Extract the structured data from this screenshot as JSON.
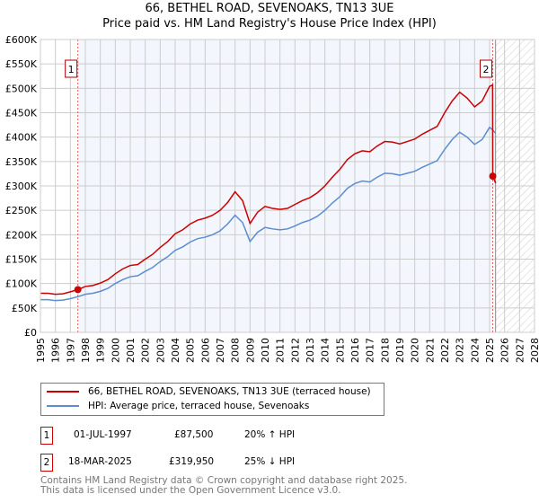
{
  "title": "66, BETHEL ROAD, SEVENOAKS, TN13 3UE",
  "subtitle": "Price paid vs. HM Land Registry's House Price Index (HPI)",
  "chart_data": {
    "type": "line",
    "xlim": [
      1995,
      2028
    ],
    "ylim": [
      0,
      600
    ],
    "x_ticks": [
      "1995",
      "1996",
      "1997",
      "1998",
      "1999",
      "2000",
      "2001",
      "2002",
      "2003",
      "2004",
      "2005",
      "2006",
      "2007",
      "2008",
      "2009",
      "2010",
      "2011",
      "2012",
      "2013",
      "2014",
      "2015",
      "2016",
      "2017",
      "2018",
      "2019",
      "2020",
      "2021",
      "2022",
      "2023",
      "2024",
      "2025",
      "2026",
      "2027",
      "2028"
    ],
    "y_ticks": [
      "£0",
      "£50K",
      "£100K",
      "£150K",
      "£200K",
      "£250K",
      "£300K",
      "£350K",
      "£400K",
      "£450K",
      "£500K",
      "£550K",
      "£600K"
    ],
    "grid": true,
    "series": [
      {
        "name": "66, BETHEL ROAD, SEVENOAKS, TN13 3UE (terraced house)",
        "color": "#cc0000",
        "x": [
          1995,
          1995.5,
          1996,
          1996.5,
          1997,
          1997.5,
          1998,
          1998.5,
          1999,
          1999.5,
          2000,
          2000.5,
          2001,
          2001.5,
          2002,
          2002.5,
          2003,
          2003.5,
          2004,
          2004.5,
          2005,
          2005.5,
          2006,
          2006.5,
          2007,
          2007.5,
          2008,
          2008.5,
          2009,
          2009.5,
          2010,
          2010.5,
          2011,
          2011.5,
          2012,
          2012.5,
          2013,
          2013.5,
          2014,
          2014.5,
          2015,
          2015.5,
          2016,
          2016.5,
          2017,
          2017.5,
          2018,
          2018.5,
          2019,
          2019.5,
          2020,
          2020.5,
          2021,
          2021.5,
          2022,
          2022.5,
          2023,
          2023.5,
          2024,
          2024.5,
          2025,
          2025.2,
          2025.21,
          2025.4
        ],
        "y": [
          80,
          80,
          78,
          79,
          83,
          87.5,
          94,
          96,
          101,
          108,
          120,
          130,
          137,
          139,
          150,
          160,
          174,
          186,
          202,
          210,
          222,
          230,
          234,
          240,
          250,
          266,
          288,
          270,
          223,
          246,
          258,
          254,
          252,
          254,
          262,
          270,
          276,
          286,
          300,
          318,
          334,
          354,
          366,
          372,
          370,
          382,
          391,
          390,
          386,
          391,
          396,
          406,
          414,
          422,
          450,
          474,
          492,
          480,
          462,
          474,
          504,
          507,
          319.95,
          306
        ]
      },
      {
        "name": "HPI: Average price, terraced house, Sevenoaks",
        "color": "#5b8dd0",
        "x": [
          1995,
          1995.5,
          1996,
          1996.5,
          1997,
          1997.5,
          1998,
          1998.5,
          1999,
          1999.5,
          2000,
          2000.5,
          2001,
          2001.5,
          2002,
          2002.5,
          2003,
          2003.5,
          2004,
          2004.5,
          2005,
          2005.5,
          2006,
          2006.5,
          2007,
          2007.5,
          2008,
          2008.5,
          2009,
          2009.5,
          2010,
          2010.5,
          2011,
          2011.5,
          2012,
          2012.5,
          2013,
          2013.5,
          2014,
          2014.5,
          2015,
          2015.5,
          2016,
          2016.5,
          2017,
          2017.5,
          2018,
          2018.5,
          2019,
          2019.5,
          2020,
          2020.5,
          2021,
          2021.5,
          2022,
          2022.5,
          2023,
          2023.5,
          2024,
          2024.5,
          2025,
          2025.2,
          2025.4
        ],
        "y": [
          67,
          67,
          65,
          66,
          69,
          73,
          78,
          80,
          84,
          90,
          100,
          108,
          114,
          116,
          125,
          133,
          145,
          155,
          168,
          175,
          185,
          192,
          195,
          200,
          208,
          222,
          240,
          225,
          186,
          205,
          215,
          212,
          210,
          212,
          218,
          225,
          230,
          238,
          250,
          265,
          278,
          295,
          305,
          310,
          308,
          318,
          326,
          325,
          322,
          326,
          330,
          338,
          345,
          352,
          375,
          395,
          410,
          400,
          385,
          395,
          420,
          415,
          408
        ]
      }
    ],
    "sales": [
      {
        "label": "1",
        "x": 1997.5,
        "y": 87.5
      },
      {
        "label": "2",
        "x": 2025.21,
        "y": 319.95
      }
    ],
    "shaded_range": [
      1997.5,
      2025.21
    ],
    "forecast_hatched_from": 2025.4,
    "legend_position": "bottom"
  },
  "legend": {
    "property": "66, BETHEL ROAD, SEVENOAKS, TN13 3UE (terraced house)",
    "hpi": "HPI: Average price, terraced house, Sevenoaks"
  },
  "transactions": [
    {
      "num": "1",
      "date": "01-JUL-1997",
      "price": "£87,500",
      "hpi": "20% ↑ HPI"
    },
    {
      "num": "2",
      "date": "18-MAR-2025",
      "price": "£319,950",
      "hpi": "25% ↓ HPI"
    }
  ],
  "footer": {
    "line1": "Contains HM Land Registry data © Crown copyright and database right 2025.",
    "line2": "This data is licensed under the Open Government Licence v3.0."
  }
}
